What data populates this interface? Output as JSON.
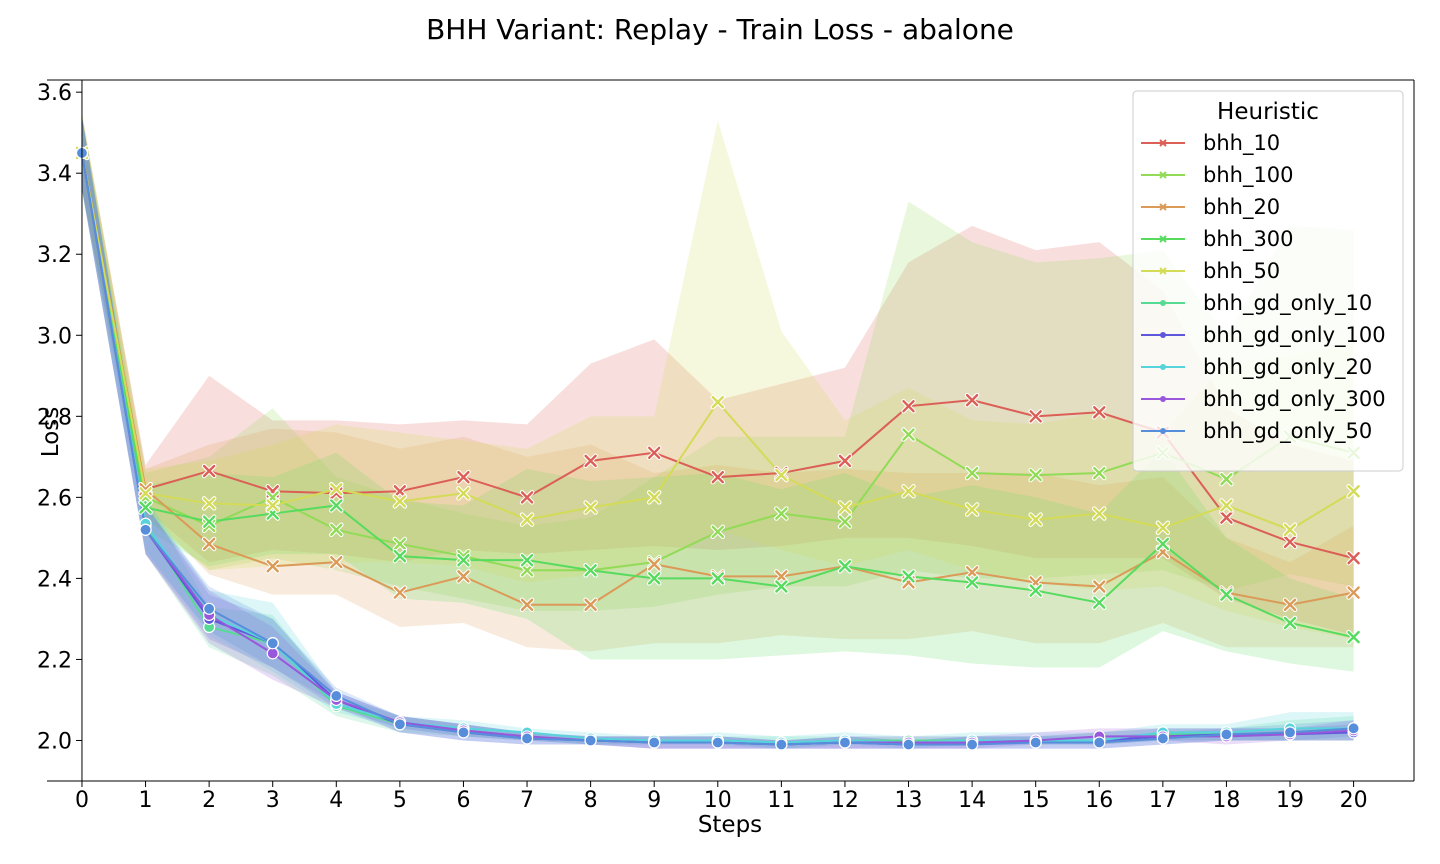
{
  "chart_data": {
    "type": "line",
    "title": "BHH Variant: Replay - Train Loss - abalone",
    "xlabel": "Steps",
    "ylabel": "Loss",
    "x": [
      0,
      1,
      2,
      3,
      4,
      5,
      6,
      7,
      8,
      9,
      10,
      11,
      12,
      13,
      14,
      15,
      16,
      17,
      18,
      19,
      20
    ],
    "x_ticks": [
      "0",
      "1",
      "2",
      "3",
      "4",
      "5",
      "6",
      "7",
      "8",
      "9",
      "10",
      "11",
      "12",
      "13",
      "14",
      "15",
      "16",
      "17",
      "18",
      "19",
      "20"
    ],
    "xlim": [
      -0.55,
      20.95
    ],
    "ylim": [
      1.9,
      3.63
    ],
    "y_ticks": [
      2.0,
      2.2,
      2.4,
      2.6,
      2.8,
      3.0,
      3.2,
      3.4,
      3.6
    ],
    "y_tick_labels": [
      "2.0",
      "2.2",
      "2.4",
      "2.6",
      "2.8",
      "3.0",
      "3.2",
      "3.4",
      "3.6"
    ],
    "grid": false,
    "legend": {
      "title": "Heuristic",
      "placement": "top-right"
    },
    "series": [
      {
        "name": "bhh_10",
        "color": "#db5f57",
        "marker": "x",
        "values": [
          3.45,
          2.62,
          2.665,
          2.615,
          2.61,
          2.615,
          2.65,
          2.6,
          2.69,
          2.71,
          2.65,
          2.66,
          2.69,
          2.825,
          2.84,
          2.8,
          2.81,
          2.76,
          2.55,
          2.49,
          2.45
        ],
        "lower": [
          3.36,
          2.57,
          2.44,
          2.47,
          2.46,
          2.44,
          2.47,
          2.46,
          2.47,
          2.48,
          2.47,
          2.48,
          2.5,
          2.5,
          2.48,
          2.45,
          2.45,
          2.45,
          2.35,
          2.3,
          2.26
        ],
        "upper": [
          3.54,
          2.68,
          2.9,
          2.79,
          2.79,
          2.78,
          2.79,
          2.78,
          2.93,
          2.99,
          2.84,
          2.88,
          2.92,
          3.18,
          3.27,
          3.21,
          3.23,
          3.11,
          2.82,
          2.73,
          2.69
        ]
      },
      {
        "name": "bhh_100",
        "color": "#91db57",
        "marker": "x",
        "values": [
          3.45,
          2.6,
          2.53,
          2.6,
          2.52,
          2.485,
          2.455,
          2.42,
          2.42,
          2.44,
          2.515,
          2.56,
          2.54,
          2.755,
          2.66,
          2.655,
          2.66,
          2.71,
          2.645,
          2.75,
          2.71
        ],
        "lower": [
          3.36,
          2.55,
          2.42,
          2.45,
          2.42,
          2.38,
          2.35,
          2.32,
          2.32,
          2.33,
          2.36,
          2.38,
          2.38,
          2.42,
          2.4,
          2.4,
          2.41,
          2.42,
          2.37,
          2.41,
          2.38
        ],
        "upper": [
          3.54,
          2.66,
          2.7,
          2.82,
          2.65,
          2.6,
          2.56,
          2.53,
          2.55,
          2.65,
          2.75,
          2.75,
          2.75,
          3.33,
          3.23,
          3.18,
          3.19,
          3.21,
          3.0,
          3.27,
          3.26
        ]
      },
      {
        "name": "bhh_20",
        "color": "#db9a57",
        "marker": "x",
        "values": [
          3.45,
          2.62,
          2.485,
          2.43,
          2.44,
          2.365,
          2.405,
          2.335,
          2.335,
          2.435,
          2.405,
          2.405,
          2.43,
          2.39,
          2.415,
          2.39,
          2.38,
          2.465,
          2.365,
          2.335,
          2.365
        ],
        "lower": [
          3.36,
          2.57,
          2.41,
          2.36,
          2.36,
          2.28,
          2.29,
          2.23,
          2.22,
          2.24,
          2.24,
          2.26,
          2.25,
          2.25,
          2.27,
          2.24,
          2.24,
          2.29,
          2.23,
          2.23,
          2.23
        ],
        "upper": [
          3.55,
          2.67,
          2.73,
          2.77,
          2.76,
          2.72,
          2.75,
          2.7,
          2.73,
          2.66,
          2.68,
          2.66,
          2.67,
          2.66,
          2.66,
          2.66,
          2.63,
          2.65,
          2.5,
          2.44,
          2.53
        ]
      },
      {
        "name": "bhh_300",
        "color": "#57db5f",
        "marker": "x",
        "values": [
          3.45,
          2.575,
          2.54,
          2.56,
          2.58,
          2.455,
          2.445,
          2.445,
          2.42,
          2.4,
          2.4,
          2.38,
          2.43,
          2.405,
          2.39,
          2.37,
          2.34,
          2.485,
          2.36,
          2.29,
          2.255
        ],
        "lower": [
          3.36,
          2.52,
          2.43,
          2.46,
          2.46,
          2.35,
          2.34,
          2.3,
          2.2,
          2.2,
          2.2,
          2.21,
          2.22,
          2.21,
          2.19,
          2.18,
          2.18,
          2.27,
          2.22,
          2.19,
          2.17
        ],
        "upper": [
          3.54,
          2.63,
          2.66,
          2.65,
          2.71,
          2.59,
          2.58,
          2.67,
          2.64,
          2.65,
          2.66,
          2.62,
          2.66,
          2.6,
          2.63,
          2.6,
          2.56,
          2.72,
          2.5,
          2.4,
          2.35
        ]
      },
      {
        "name": "bhh_50",
        "color": "#d3db57",
        "marker": "x",
        "values": [
          3.45,
          2.61,
          2.585,
          2.58,
          2.62,
          2.59,
          2.61,
          2.545,
          2.575,
          2.6,
          2.835,
          2.655,
          2.575,
          2.615,
          2.57,
          2.545,
          2.56,
          2.525,
          2.58,
          2.52,
          2.615
        ],
        "lower": [
          3.36,
          2.55,
          2.42,
          2.43,
          2.44,
          2.44,
          2.43,
          2.39,
          2.41,
          2.44,
          2.52,
          2.47,
          2.43,
          2.47,
          2.42,
          2.39,
          2.37,
          2.38,
          2.32,
          2.28,
          2.25
        ],
        "upper": [
          3.55,
          2.67,
          2.69,
          2.73,
          2.78,
          2.76,
          2.74,
          2.72,
          2.8,
          2.8,
          3.53,
          3.01,
          2.79,
          2.87,
          2.79,
          2.78,
          2.81,
          2.76,
          2.93,
          2.95,
          2.98
        ]
      },
      {
        "name": "bhh_gd_only_10",
        "color": "#57db94",
        "marker": "o",
        "values": [
          3.45,
          2.53,
          2.28,
          2.24,
          2.085,
          2.04,
          2.025,
          2.01,
          2.0,
          2.0,
          2.0,
          1.995,
          2.0,
          2.0,
          2.0,
          2.0,
          2.0,
          2.015,
          2.015,
          2.02,
          2.025
        ],
        "lower": [
          3.36,
          2.46,
          2.23,
          2.16,
          2.06,
          2.02,
          2.01,
          2.0,
          1.99,
          1.99,
          1.99,
          1.98,
          1.99,
          1.99,
          1.99,
          1.99,
          1.99,
          2.0,
          2.0,
          2.0,
          2.0
        ],
        "upper": [
          3.54,
          2.6,
          2.33,
          2.31,
          2.11,
          2.06,
          2.04,
          2.02,
          2.01,
          2.01,
          2.01,
          2.01,
          2.01,
          2.01,
          2.01,
          2.01,
          2.02,
          2.03,
          2.03,
          2.05,
          2.06
        ]
      },
      {
        "name": "bhh_gd_only_100",
        "color": "#5f57db",
        "marker": "o",
        "values": [
          3.45,
          2.52,
          2.3,
          2.24,
          2.1,
          2.04,
          2.02,
          2.005,
          2.0,
          1.995,
          1.995,
          1.99,
          1.995,
          1.99,
          1.995,
          1.995,
          2.0,
          2.01,
          2.015,
          2.015,
          2.02
        ],
        "lower": [
          3.36,
          2.46,
          2.25,
          2.18,
          2.08,
          2.02,
          2.0,
          1.99,
          1.99,
          1.98,
          1.98,
          1.98,
          1.98,
          1.98,
          1.98,
          1.98,
          1.98,
          1.99,
          2.0,
          2.0,
          2.0
        ],
        "upper": [
          3.54,
          2.58,
          2.36,
          2.3,
          2.12,
          2.06,
          2.04,
          2.02,
          2.01,
          2.01,
          2.01,
          2.0,
          2.01,
          2.0,
          2.01,
          2.01,
          2.02,
          2.03,
          2.03,
          2.03,
          2.04
        ]
      },
      {
        "name": "bhh_gd_only_20",
        "color": "#57d3db",
        "marker": "o",
        "values": [
          3.45,
          2.535,
          2.31,
          2.24,
          2.09,
          2.045,
          2.03,
          2.02,
          2.005,
          2.0,
          2.0,
          1.995,
          2.0,
          1.995,
          2.0,
          2.0,
          2.0,
          2.02,
          2.02,
          2.03,
          2.03
        ],
        "lower": [
          3.36,
          2.47,
          2.26,
          2.17,
          2.07,
          2.03,
          2.01,
          2.0,
          1.99,
          1.99,
          1.99,
          1.98,
          1.99,
          1.98,
          1.99,
          1.99,
          1.99,
          2.0,
          2.0,
          2.0,
          2.0
        ],
        "upper": [
          3.54,
          2.6,
          2.37,
          2.34,
          2.12,
          2.06,
          2.05,
          2.03,
          2.02,
          2.01,
          2.02,
          2.01,
          2.02,
          2.01,
          2.02,
          2.02,
          2.02,
          2.04,
          2.04,
          2.07,
          2.07
        ]
      },
      {
        "name": "bhh_gd_only_300",
        "color": "#9957db",
        "marker": "o",
        "values": [
          3.45,
          2.52,
          2.31,
          2.215,
          2.1,
          2.045,
          2.025,
          2.01,
          2.0,
          1.995,
          1.995,
          1.99,
          1.995,
          1.995,
          1.995,
          2.0,
          2.01,
          2.01,
          2.01,
          2.015,
          2.025
        ],
        "lower": [
          3.36,
          2.46,
          2.24,
          2.15,
          2.08,
          2.03,
          2.01,
          2.0,
          1.99,
          1.98,
          1.98,
          1.98,
          1.98,
          1.98,
          1.98,
          1.99,
          1.99,
          2.0,
          1.99,
          2.0,
          2.0
        ],
        "upper": [
          3.54,
          2.58,
          2.37,
          2.28,
          2.12,
          2.06,
          2.04,
          2.02,
          2.01,
          2.01,
          2.01,
          2.0,
          2.01,
          2.01,
          2.01,
          2.02,
          2.03,
          2.03,
          2.03,
          2.03,
          2.05
        ]
      },
      {
        "name": "bhh_gd_only_50",
        "color": "#578edb",
        "marker": "o",
        "values": [
          3.45,
          2.52,
          2.325,
          2.24,
          2.11,
          2.04,
          2.02,
          2.005,
          2.0,
          1.995,
          1.995,
          1.99,
          1.995,
          1.99,
          1.99,
          1.995,
          1.995,
          2.005,
          2.015,
          2.02,
          2.03
        ],
        "lower": [
          3.36,
          2.46,
          2.27,
          2.18,
          2.09,
          2.02,
          2.0,
          1.99,
          1.99,
          1.98,
          1.98,
          1.98,
          1.98,
          1.98,
          1.98,
          1.98,
          1.98,
          1.99,
          2.0,
          2.0,
          2.01
        ],
        "upper": [
          3.54,
          2.58,
          2.38,
          2.3,
          2.13,
          2.06,
          2.04,
          2.02,
          2.01,
          2.01,
          2.01,
          2.0,
          2.01,
          2.0,
          2.01,
          2.01,
          2.01,
          2.02,
          2.03,
          2.04,
          2.05
        ]
      }
    ]
  }
}
